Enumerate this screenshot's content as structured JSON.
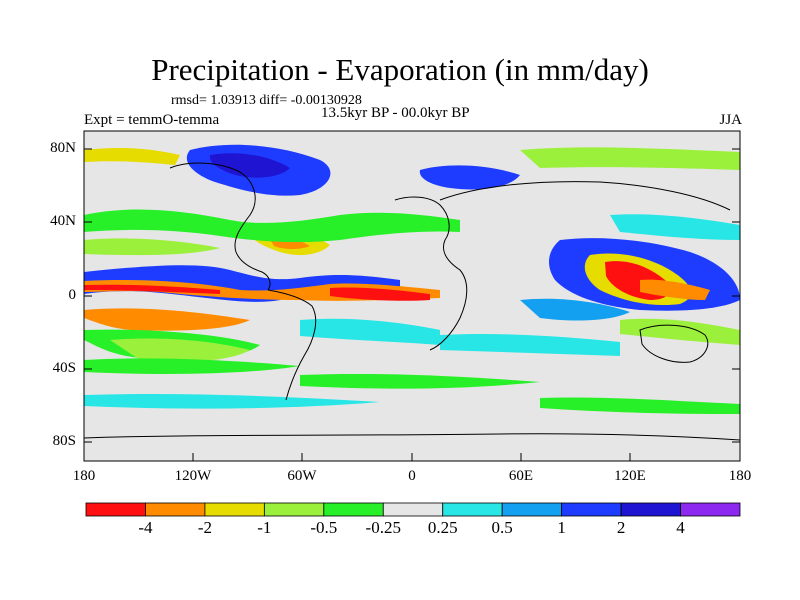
{
  "title": "Precipitation - Evaporation (in mm/day)",
  "stats": "rmsd= 1.03913 diff= -0.00130928",
  "experiment": "Expt = temmO-temma",
  "period": "13.5kyr BP - 00.0kyr BP",
  "season": "JJA",
  "lat_ticks": [
    "80N",
    "40N",
    "0",
    "40S",
    "80S"
  ],
  "lon_ticks": [
    "180",
    "120W",
    "60W",
    "0",
    "60E",
    "120E",
    "180"
  ],
  "colorbar": {
    "labels": [
      "-4",
      "-2",
      "-1",
      "-0.5",
      "-0.25",
      "0.25",
      "0.5",
      "1",
      "2",
      "4"
    ],
    "colors": [
      "#ff1010",
      "#ff8c00",
      "#e6dc00",
      "#9bf03c",
      "#28f028",
      "#e6e6e6",
      "#28e6e6",
      "#14a0f0",
      "#1e3cff",
      "#1e14d2",
      "#8c28f0"
    ]
  },
  "palette": {
    "land_neutral": "#e6e6e6",
    "coast": "#000000"
  }
}
